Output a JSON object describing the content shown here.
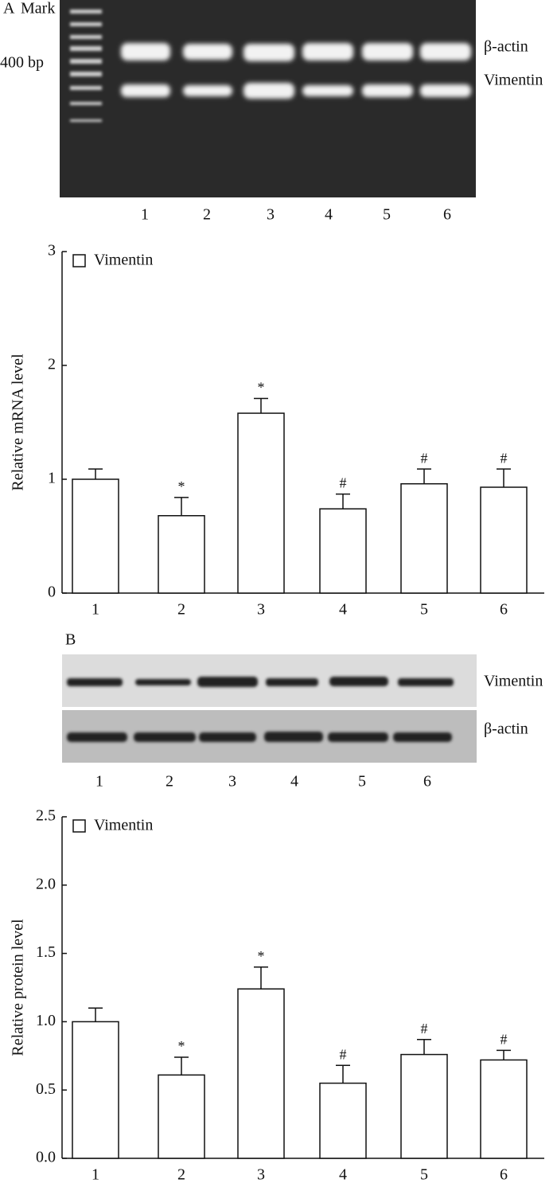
{
  "panels": [
    {
      "label": "A",
      "marker": "Mark",
      "size_label": "400 bp",
      "bands": [
        "β-actin",
        "Vimentin"
      ],
      "lanes": [
        "1",
        "2",
        "3",
        "4",
        "5",
        "6"
      ]
    },
    {
      "label": "B",
      "bands": [
        "Vimentin",
        "β-actin"
      ],
      "lanes": [
        "1",
        "2",
        "3",
        "4",
        "5",
        "6"
      ]
    }
  ],
  "chart_data": [
    {
      "type": "bar",
      "ylabel": "Relative mRNA level",
      "categories": [
        "1",
        "2",
        "3",
        "4",
        "5",
        "6"
      ],
      "series": [
        {
          "name": "Vimentin",
          "color": "#ffffff",
          "values": [
            1.0,
            0.68,
            1.58,
            0.74,
            0.96,
            0.93
          ],
          "errors": [
            0.09,
            0.16,
            0.13,
            0.13,
            0.13,
            0.16
          ]
        }
      ],
      "annotations": [
        null,
        "*",
        "*",
        "#",
        "#",
        "#"
      ],
      "ylim": [
        0,
        3
      ],
      "yticks": [
        0,
        1,
        2,
        3
      ],
      "legend": "upper left"
    },
    {
      "type": "bar",
      "ylabel": "Relative protein level",
      "categories": [
        "1",
        "2",
        "3",
        "4",
        "5",
        "6"
      ],
      "series": [
        {
          "name": "Vimentin",
          "color": "#ffffff",
          "values": [
            1.0,
            0.61,
            1.24,
            0.55,
            0.76,
            0.72
          ],
          "errors": [
            0.1,
            0.13,
            0.16,
            0.13,
            0.11,
            0.07
          ]
        }
      ],
      "annotations": [
        null,
        "*",
        "*",
        "#",
        "#",
        "#"
      ],
      "ylim": [
        0,
        2.5
      ],
      "yticks": [
        {
          "value": 0,
          "label": "0.0"
        },
        0.5,
        {
          "value": 1,
          "label": "1.0"
        },
        1.5,
        {
          "value": 2,
          "label": "2.0"
        },
        2.5
      ],
      "legend": "upper left"
    }
  ]
}
